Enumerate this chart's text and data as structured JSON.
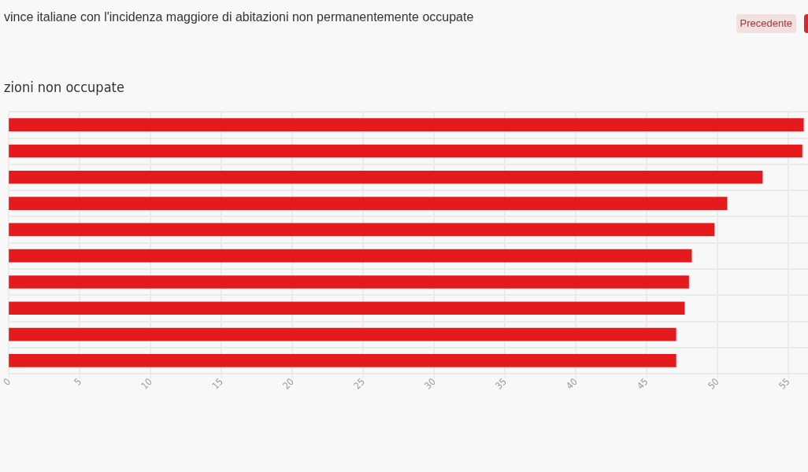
{
  "chart_data": {
    "type": "bar",
    "orientation": "horizontal",
    "title": "vince italiane con l'incidenza maggiore di abitazioni non permanentemente occupate",
    "subtitle": "zioni non occupate",
    "annotations": [
      "Precedente"
    ],
    "categories": [
      null,
      null,
      null,
      null,
      null,
      null,
      null,
      null,
      null,
      null
    ],
    "values": [
      56.1,
      56.0,
      53.2,
      50.7,
      49.8,
      48.2,
      48.0,
      47.7,
      47.1,
      47.1
    ],
    "color": "#e51a1c",
    "xlim": [
      0,
      56.4
    ],
    "xticks": [
      0,
      5,
      10,
      15,
      20,
      25,
      30,
      35,
      40,
      45,
      50,
      55
    ],
    "grid": true
  }
}
